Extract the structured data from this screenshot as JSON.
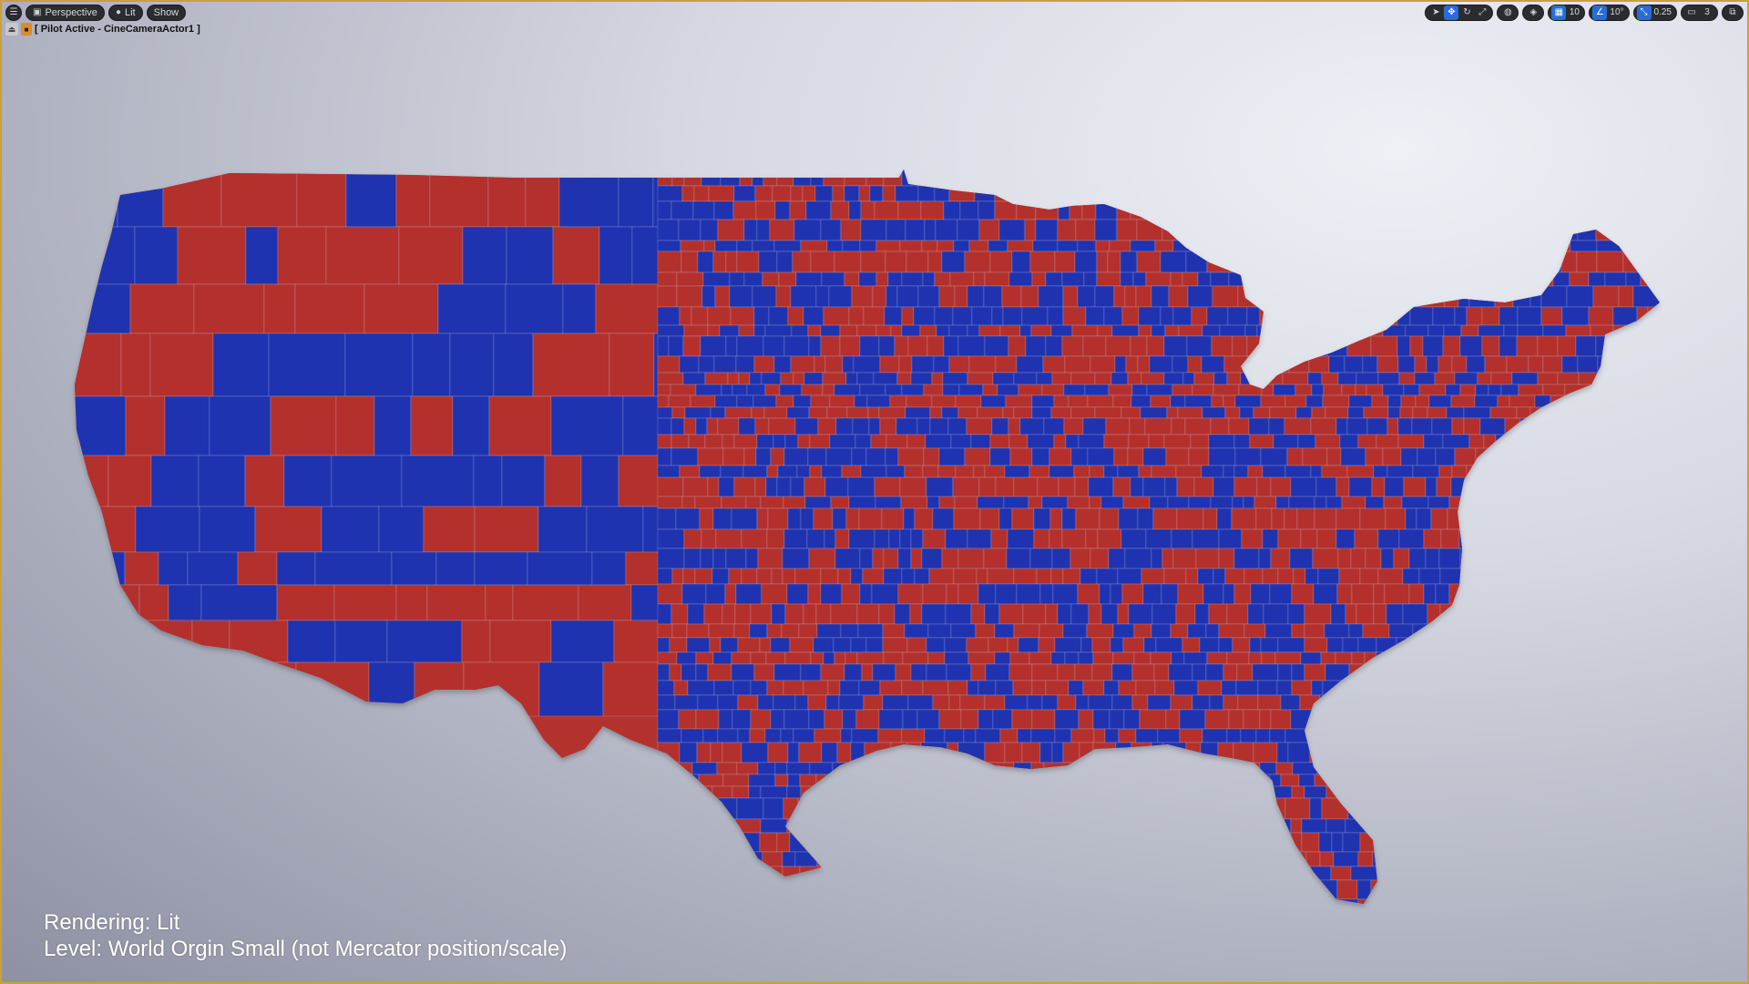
{
  "toolbar_left": {
    "menu_icon": "hamburger-icon",
    "perspective_label": "Perspective",
    "perspective_icon": "cube-icon",
    "lit_label": "Lit",
    "lit_icon": "sphere-icon",
    "show_label": "Show"
  },
  "pilot": {
    "label": "[ Pilot Active - CineCameraActor1 ]",
    "eject_icon": "eject-icon",
    "camera_icon": "camera-icon"
  },
  "toolbar_right": {
    "select_icon": "cursor-icon",
    "translate_icon": "move-icon",
    "rotate_icon": "rotate-icon",
    "scale_icon": "scale-icon",
    "world_icon": "globe-icon",
    "surface_snap_icon": "surface-snap-icon",
    "grid_snap_value": "10",
    "rotation_snap_value": "10°",
    "scale_snap_value": "0.25",
    "camera_speed_value": "3",
    "maximize_icon": "maximize-icon"
  },
  "map": {
    "title": "",
    "colors": {
      "red": "#b3302d",
      "blue": "#1f33b0",
      "border": "#d9dbe6"
    }
  },
  "overlay": {
    "rendering": "Rendering: Lit",
    "level": "Level: World Orgin Small (not Mercator position/scale)"
  }
}
